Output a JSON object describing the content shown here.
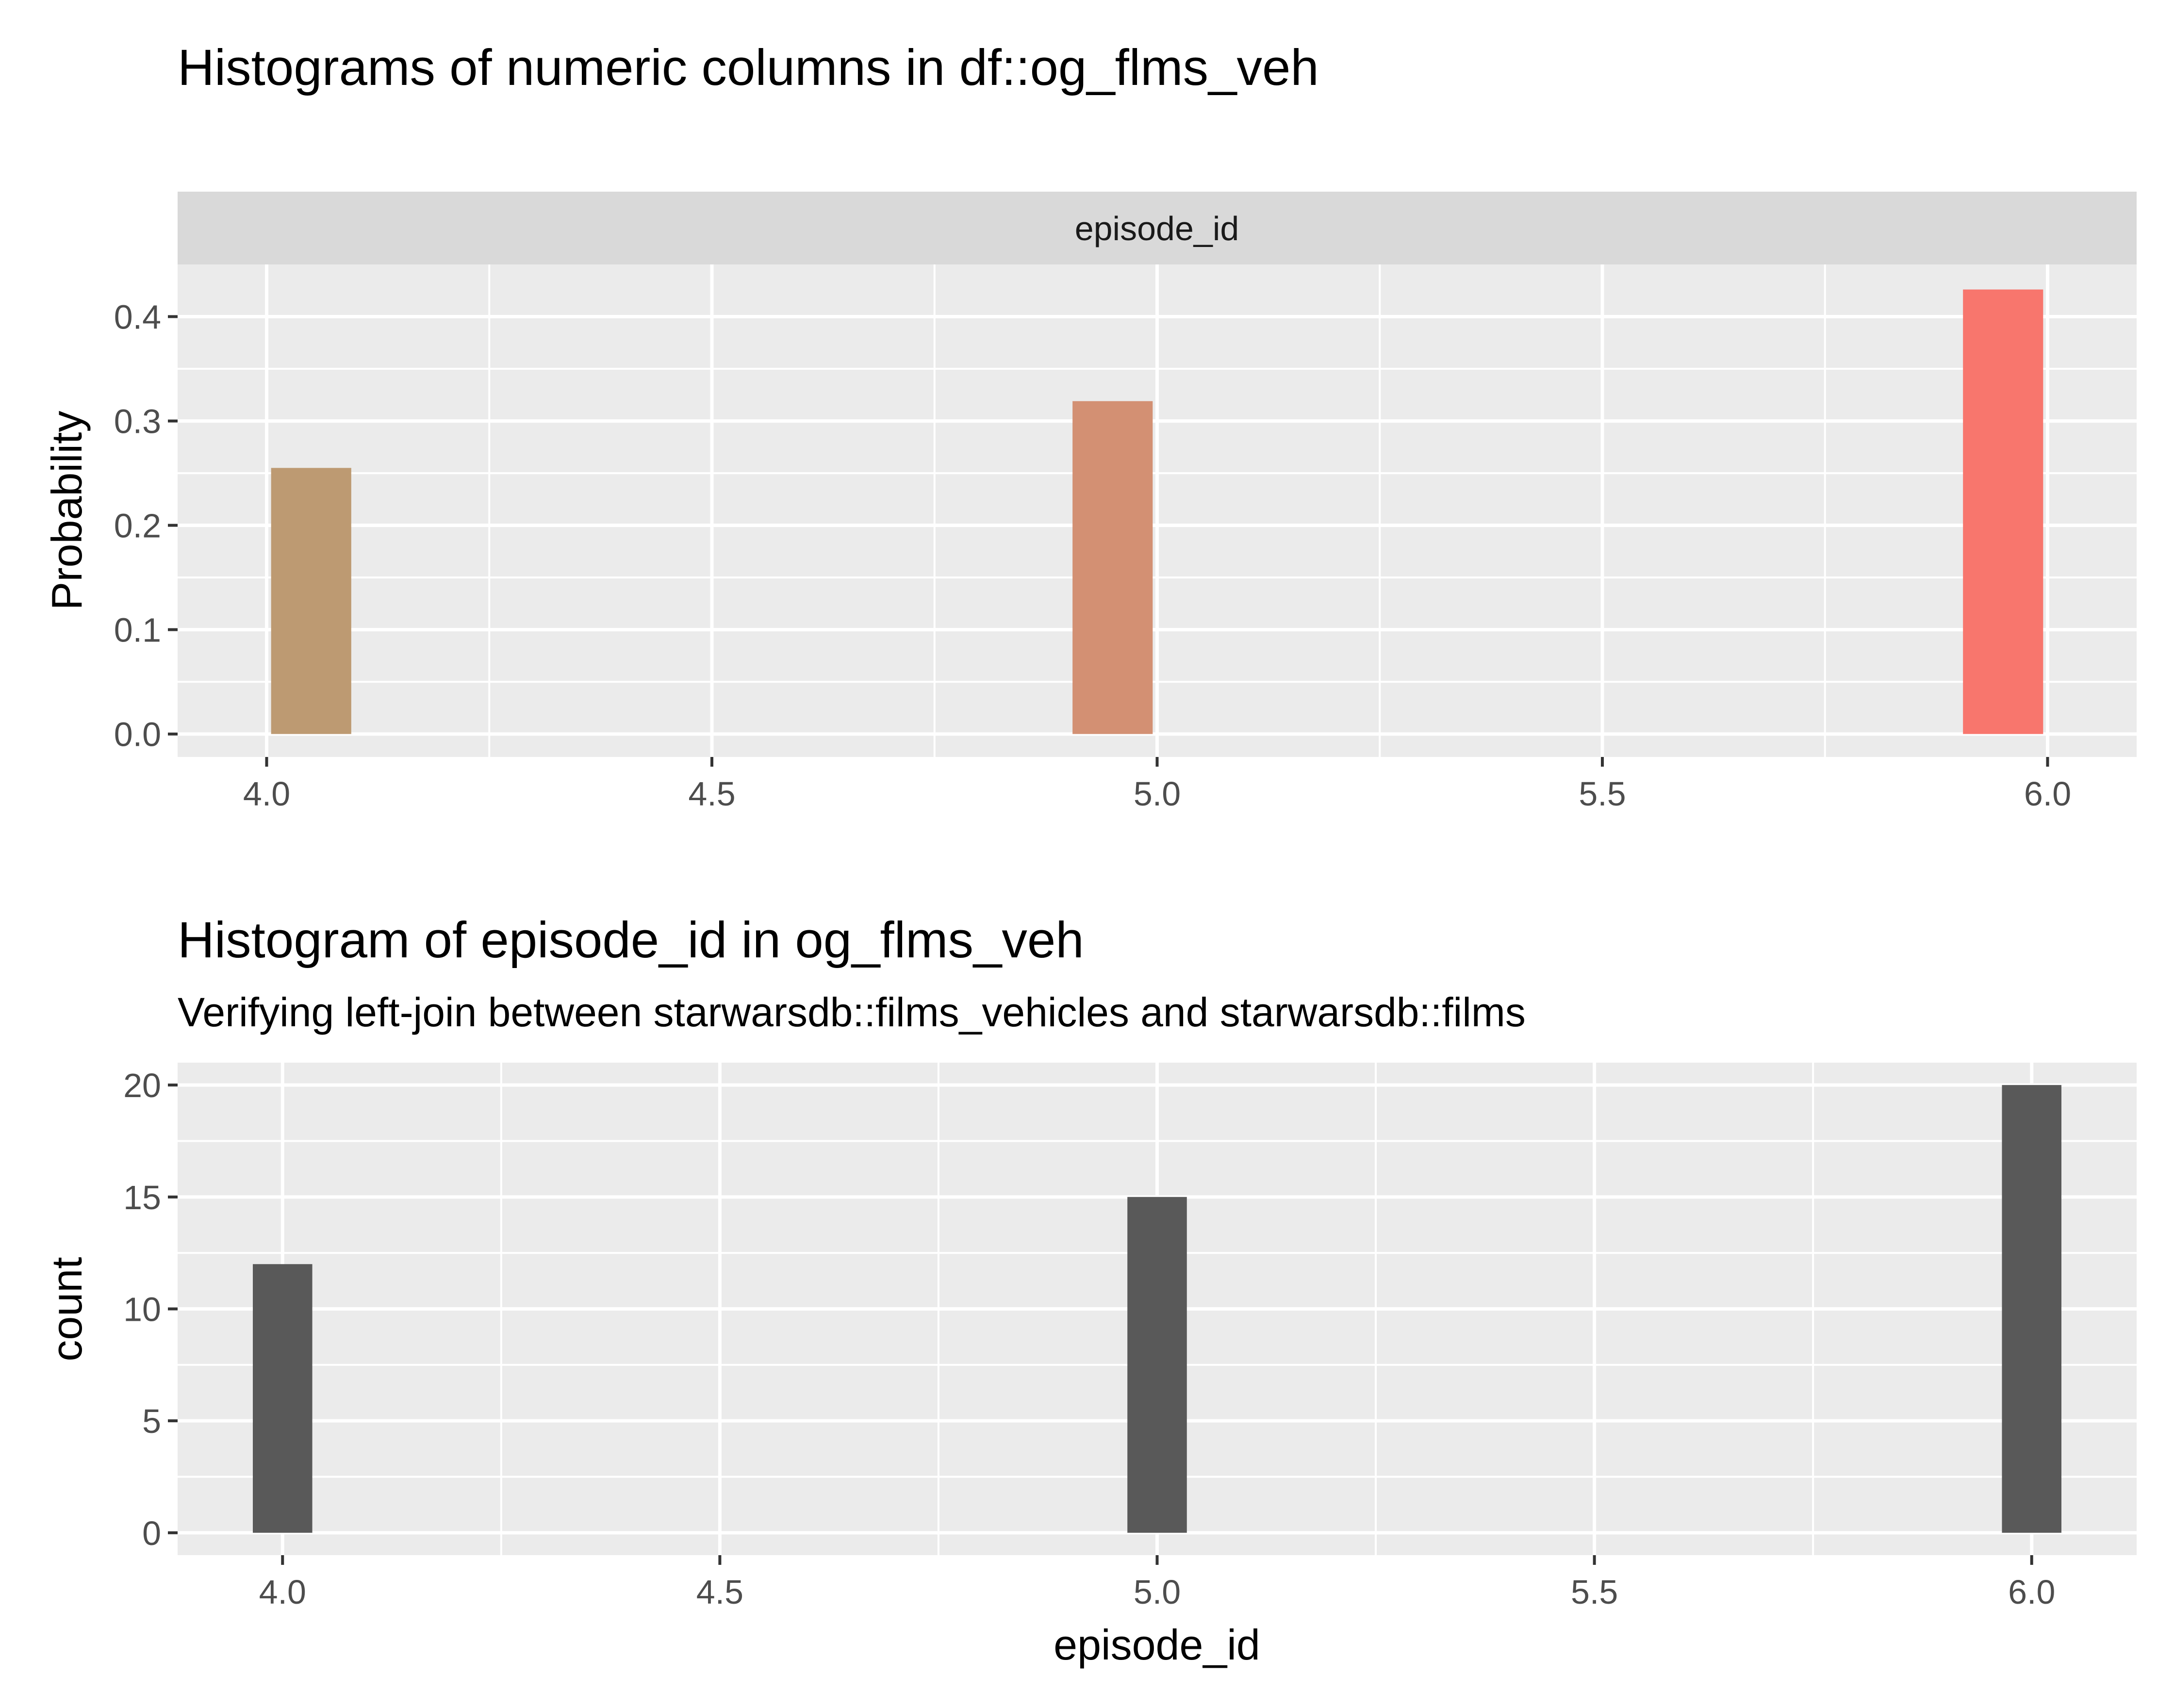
{
  "chart_data": [
    {
      "type": "bar",
      "title": "Histograms of numeric columns in df::og_flms_veh",
      "facet_label": "episode_id",
      "xlabel": "",
      "ylabel": "Probability",
      "xlim": [
        3.9,
        6.1
      ],
      "ylim": [
        -0.022,
        0.45
      ],
      "x_ticks": [
        {
          "value": 4.0,
          "label": "4.0"
        },
        {
          "value": 4.5,
          "label": "4.5"
        },
        {
          "value": 5.0,
          "label": "5.0"
        },
        {
          "value": 5.5,
          "label": "5.5"
        },
        {
          "value": 6.0,
          "label": "6.0"
        }
      ],
      "y_ticks": [
        {
          "value": 0.0,
          "label": "0.0"
        },
        {
          "value": 0.1,
          "label": "0.1"
        },
        {
          "value": 0.2,
          "label": "0.2"
        },
        {
          "value": 0.3,
          "label": "0.3"
        },
        {
          "value": 0.4,
          "label": "0.4"
        }
      ],
      "bars": [
        {
          "xmin": 4.005,
          "xmax": 4.095,
          "value": 0.255,
          "color": "#bd9a72"
        },
        {
          "xmin": 4.905,
          "xmax": 4.995,
          "value": 0.319,
          "color": "#d39073"
        },
        {
          "xmin": 5.905,
          "xmax": 5.995,
          "value": 0.426,
          "color": "#f8766d"
        }
      ],
      "grid": true,
      "colors": {
        "panel": "#ebebeb",
        "strip": "#d9d9d9",
        "grid": "#ffffff"
      }
    },
    {
      "type": "bar",
      "title": "Histogram of episode_id in og_flms_veh",
      "subtitle": "Verifying left-join between starwarsdb::films_vehicles and starwarsdb::films",
      "xlabel": "episode_id",
      "ylabel": "count",
      "xlim": [
        3.88,
        6.12
      ],
      "ylim": [
        -1,
        21
      ],
      "x_ticks": [
        {
          "value": 4.0,
          "label": "4.0"
        },
        {
          "value": 4.5,
          "label": "4.5"
        },
        {
          "value": 5.0,
          "label": "5.0"
        },
        {
          "value": 5.5,
          "label": "5.5"
        },
        {
          "value": 6.0,
          "label": "6.0"
        }
      ],
      "y_ticks": [
        {
          "value": 0,
          "label": "0"
        },
        {
          "value": 5,
          "label": "5"
        },
        {
          "value": 10,
          "label": "10"
        },
        {
          "value": 15,
          "label": "15"
        },
        {
          "value": 20,
          "label": "20"
        }
      ],
      "bars": [
        {
          "xmin": 3.966,
          "xmax": 4.034,
          "value": 12,
          "color": "#595959"
        },
        {
          "xmin": 4.966,
          "xmax": 5.034,
          "value": 15,
          "color": "#595959"
        },
        {
          "xmin": 5.966,
          "xmax": 6.034,
          "value": 20,
          "color": "#595959"
        }
      ],
      "grid": true,
      "colors": {
        "panel": "#ebebeb",
        "grid": "#ffffff"
      }
    }
  ]
}
